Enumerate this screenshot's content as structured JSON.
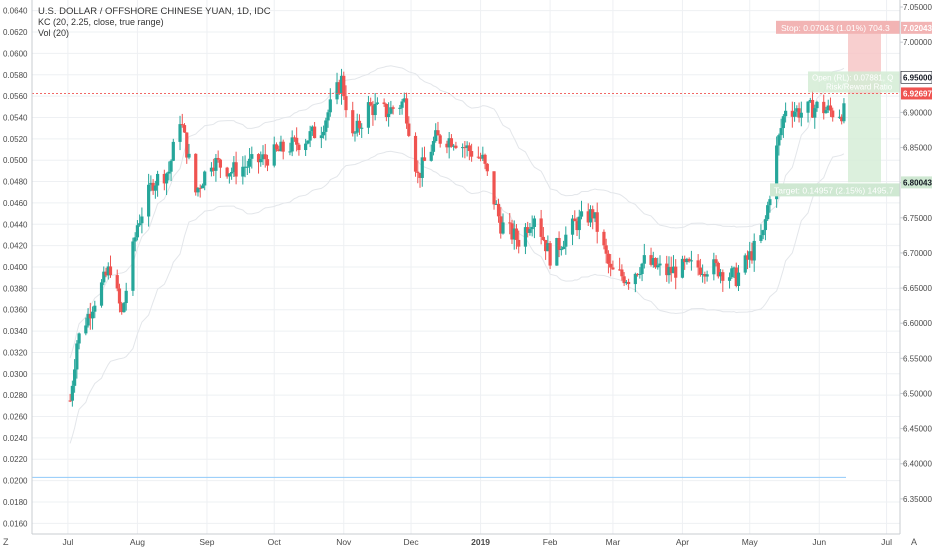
{
  "header": {
    "title": "U.S. DOLLAR / OFFSHORE CHINESE YUAN, 1D, IDC",
    "indicator_kc": "KC (20, 2.25, close, true range)",
    "indicator_vol": "Vol (20)"
  },
  "corner": {
    "left": "Z",
    "right": "A"
  },
  "colors": {
    "up": "#26a69a",
    "down": "#ef5350",
    "current_price_bg": "#ef5350",
    "stop_zone": "#f6c3c3",
    "target_zone": "#d3ecd5",
    "guide_line": "#90caf9",
    "grid": "#eef0f3"
  },
  "chart_data": {
    "type": "candlestick",
    "symbol": "USDCNH",
    "x_labels": [
      "Jul",
      "Aug",
      "Sep",
      "Oct",
      "Nov",
      "Dec",
      "2019",
      "Feb",
      "Mar",
      "Apr",
      "May",
      "Jun",
      "Jul"
    ],
    "left_axis": {
      "range": [
        0.015,
        0.065
      ],
      "ticks": [
        "0.0640",
        "0.0620",
        "0.0600",
        "0.0580",
        "0.0560",
        "0.0540",
        "0.0520",
        "0.0500",
        "0.0480",
        "0.0460",
        "0.0440",
        "0.0420",
        "0.0400",
        "0.0380",
        "0.0360",
        "0.0340",
        "0.0320",
        "0.0300",
        "0.0280",
        "0.0260",
        "0.0240",
        "0.0220",
        "0.0200",
        "0.0180",
        "0.0160"
      ]
    },
    "right_axis": {
      "range": [
        6.3,
        7.06
      ],
      "ticks": [
        "7.05000",
        "7.00000",
        "6.95000",
        "6.90000",
        "6.85000",
        "6.80000",
        "6.75000",
        "6.70000",
        "6.65000",
        "6.60000",
        "6.55000",
        "6.50000",
        "6.45000",
        "6.40000",
        "6.35000"
      ]
    },
    "price_anchors": [
      [
        "2018-07-02",
        0.0275
      ],
      [
        "2018-07-05",
        0.033
      ],
      [
        "2018-07-12",
        0.0365
      ],
      [
        "2018-07-20",
        0.04
      ],
      [
        "2018-07-25",
        0.0355
      ],
      [
        "2018-08-01",
        0.044
      ],
      [
        "2018-08-08",
        0.048
      ],
      [
        "2018-08-15",
        0.049
      ],
      [
        "2018-08-20",
        0.054
      ],
      [
        "2018-08-27",
        0.047
      ],
      [
        "2018-09-03",
        0.05
      ],
      [
        "2018-09-12",
        0.049
      ],
      [
        "2018-09-25",
        0.05
      ],
      [
        "2018-10-05",
        0.051
      ],
      [
        "2018-10-15",
        0.052
      ],
      [
        "2018-10-22",
        0.053
      ],
      [
        "2018-10-31",
        0.0575
      ],
      [
        "2018-11-05",
        0.052
      ],
      [
        "2018-11-12",
        0.055
      ],
      [
        "2018-11-20",
        0.0545
      ],
      [
        "2018-11-28",
        0.0555
      ],
      [
        "2018-12-04",
        0.0485
      ],
      [
        "2018-12-12",
        0.052
      ],
      [
        "2018-12-20",
        0.052
      ],
      [
        "2019-01-02",
        0.05
      ],
      [
        "2019-01-10",
        0.044
      ],
      [
        "2019-01-18",
        0.0425
      ],
      [
        "2019-01-25",
        0.045
      ],
      [
        "2019-02-01",
        0.041
      ],
      [
        "2019-02-12",
        0.044
      ],
      [
        "2019-02-20",
        0.045
      ],
      [
        "2019-02-28",
        0.0395
      ],
      [
        "2019-03-08",
        0.039
      ],
      [
        "2019-03-15",
        0.0405
      ],
      [
        "2019-03-25",
        0.0395
      ],
      [
        "2019-04-03",
        0.04
      ],
      [
        "2019-04-15",
        0.04
      ],
      [
        "2019-04-25",
        0.039
      ],
      [
        "2019-05-01",
        0.041
      ],
      [
        "2019-05-07",
        0.043
      ],
      [
        "2019-05-13",
        0.051
      ],
      [
        "2019-05-17",
        0.055
      ],
      [
        "2019-05-24",
        0.0545
      ],
      [
        "2019-05-31",
        0.055
      ],
      [
        "2019-06-07",
        0.0545
      ],
      [
        "2019-06-12",
        0.0545
      ]
    ],
    "overlay_level": 0.0203,
    "open_level": 6.927,
    "stop_level": 7.02043,
    "target_level": 6.80043,
    "reference_level": 6.95,
    "current_price_label": "6.92697",
    "reference_label": "6.95000",
    "stop_price_label": "7.02043",
    "target_price_label": "6.80043",
    "position_labels": {
      "stop": "Stop: 0.07043 (1.01%) 704.3",
      "open": "Open (RL): 0.07881, Q",
      "risk": "Risk/Reward Ratio",
      "target": "Target: 0.14957 (2.15%) 1495.7"
    }
  }
}
